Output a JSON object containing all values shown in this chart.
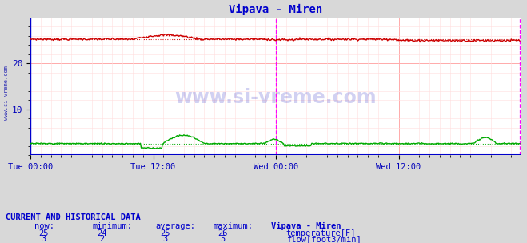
{
  "title": "Vipava - Miren",
  "title_color": "#0000cc",
  "bg_color": "#d8d8d8",
  "plot_bg_color": "#ffffff",
  "grid_color": "#ffaaaa",
  "grid_minor_color": "#ffdddd",
  "tick_color": "#0000bb",
  "watermark": "www.si-vreme.com",
  "watermark_color": "#0000bb",
  "watermark_alpha": 0.18,
  "sidebar_text": "www.si-vreme.com",
  "sidebar_color": "#0000aa",
  "xlim": [
    0,
    575
  ],
  "ylim": [
    0,
    30
  ],
  "yticks": [
    10,
    20
  ],
  "xtick_labels": [
    "Tue 00:00",
    "Tue 12:00",
    "Wed 00:00",
    "Wed 12:00"
  ],
  "xtick_positions": [
    0,
    144,
    288,
    432
  ],
  "temp_color": "#cc0000",
  "flow_color": "#00aa00",
  "avg_line_style": ":",
  "vline_color": "#ff00ff",
  "vline_pos": 288,
  "vline_end_pos": 574,
  "border_bottom_color": "#0000cc",
  "arrow_color": "#cc0000",
  "temp_now": 25,
  "temp_min": 24,
  "temp_avg": 25,
  "temp_max": 26,
  "flow_now": 3,
  "flow_min": 2,
  "flow_avg": 3,
  "flow_max": 5,
  "table_header_color": "#0000cc",
  "table_data_color": "#0000cc",
  "temp_avg_val": 25.3,
  "flow_avg_val": 2.5
}
